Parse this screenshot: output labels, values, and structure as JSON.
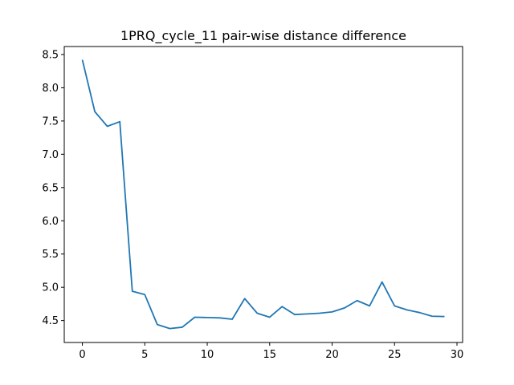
{
  "chart_data": {
    "type": "line",
    "title": "1PRQ_cycle_11 pair-wise distance difference",
    "xlabel": "",
    "ylabel": "",
    "xlim": [
      -1.45,
      30.45
    ],
    "ylim": [
      4.17,
      8.62
    ],
    "xticks": [
      0,
      5,
      10,
      15,
      20,
      25,
      30
    ],
    "yticks": [
      4.5,
      5.0,
      5.5,
      6.0,
      6.5,
      7.0,
      7.5,
      8.0,
      8.5
    ],
    "xtick_labels": [
      "0",
      "5",
      "10",
      "15",
      "20",
      "25",
      "30"
    ],
    "ytick_labels": [
      "4.5",
      "5.0",
      "5.5",
      "6.0",
      "6.5",
      "7.0",
      "7.5",
      "8.0",
      "8.5"
    ],
    "grid": false,
    "series": [
      {
        "color": "#1f77b4",
        "x": [
          0,
          1,
          2,
          3,
          4,
          5,
          6,
          7,
          8,
          9,
          10,
          11,
          12,
          13,
          14,
          15,
          16,
          17,
          18,
          19,
          20,
          21,
          22,
          23,
          24,
          25,
          26,
          27,
          28,
          29
        ],
        "values": [
          8.42,
          7.64,
          7.42,
          7.49,
          4.94,
          4.89,
          4.44,
          4.38,
          4.4,
          4.55,
          4.545,
          4.54,
          4.52,
          4.83,
          4.61,
          4.55,
          4.71,
          4.59,
          4.6,
          4.61,
          4.63,
          4.69,
          4.8,
          4.72,
          5.08,
          4.72,
          4.66,
          4.62,
          4.565,
          4.56
        ]
      }
    ]
  }
}
